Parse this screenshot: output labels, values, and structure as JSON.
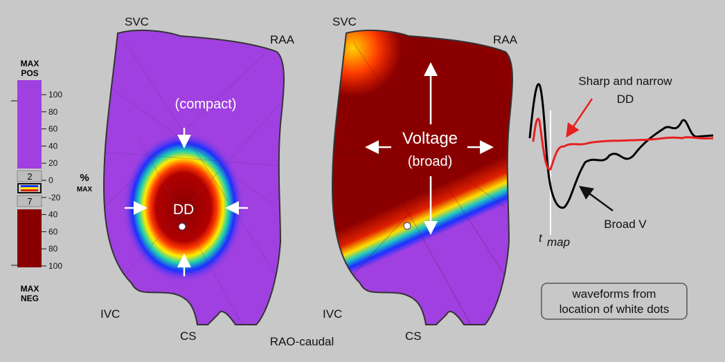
{
  "colorbar": {
    "top_label": [
      "MAX",
      "POS"
    ],
    "bottom_label": [
      "MAX",
      "NEG"
    ],
    "ticks": [
      "100",
      "80",
      "60",
      "40",
      "20",
      "0",
      "-20",
      "40",
      "60",
      "80",
      "100"
    ],
    "unit": "%",
    "unit_sub": "MAX",
    "box_top": "2",
    "box_bottom": "7"
  },
  "left_map": {
    "svc": "SVC",
    "raa": "RAA",
    "ivc": "IVC",
    "cs": "CS",
    "compact": "(compact)",
    "dd": "DD"
  },
  "right_map": {
    "svc": "SVC",
    "raa": "RAA",
    "ivc": "IVC",
    "cs": "CS",
    "voltage": "Voltage",
    "broad": "(broad)"
  },
  "view": "RAO-caudal",
  "waveforms": {
    "sharp": [
      "Sharp and narrow",
      "DD"
    ],
    "broad_v": "Broad V",
    "tmap": "t",
    "tmap_sub": "map",
    "note": [
      "waveforms from",
      "location of white dots"
    ]
  }
}
